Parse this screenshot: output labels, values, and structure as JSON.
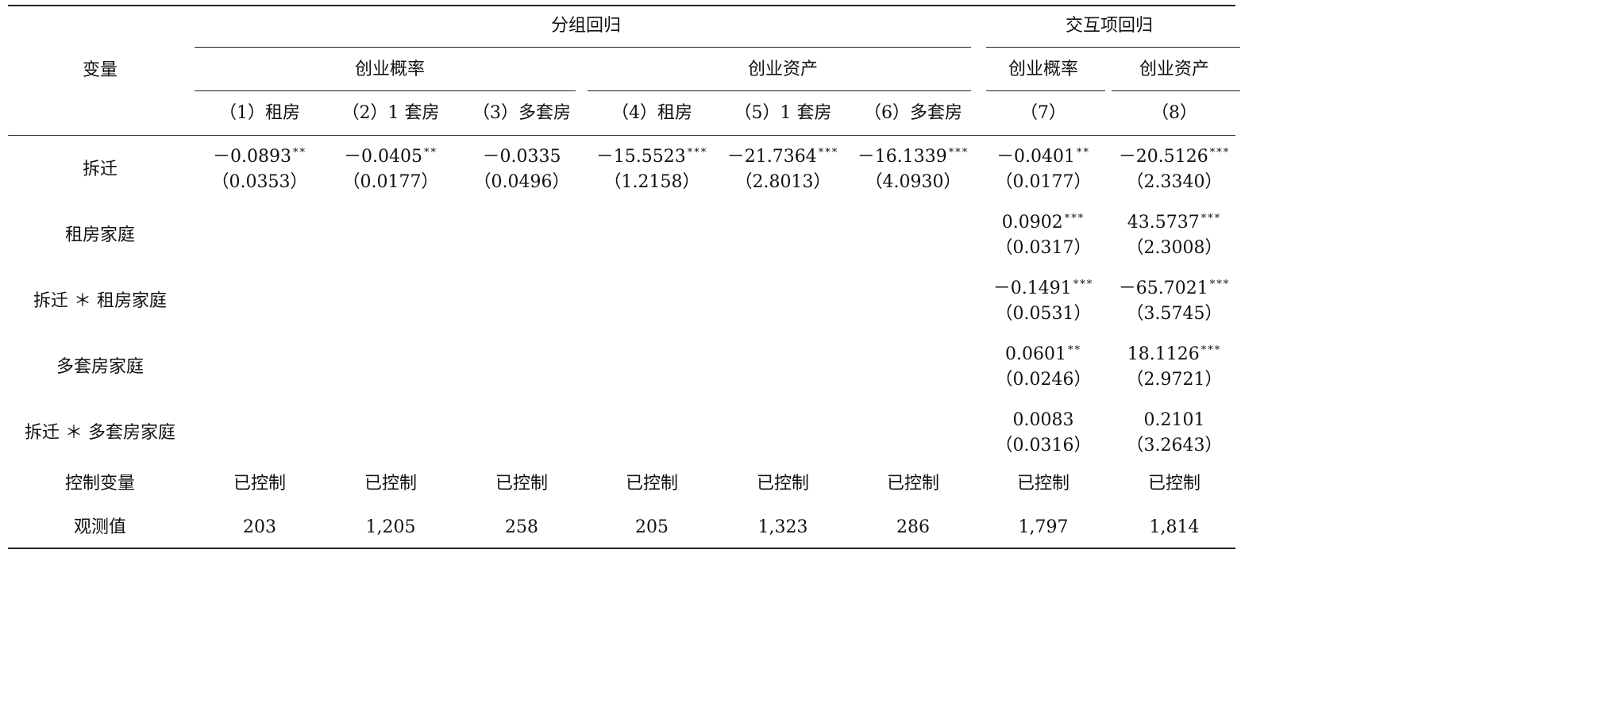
{
  "header": {
    "variable_label": "变量",
    "group_regression": "分组回归",
    "interaction_regression": "交互项回归",
    "group_prob": "创业概率",
    "group_asset": "创业资产",
    "inter_prob": "创业概率",
    "inter_asset": "创业资产",
    "columns": [
      "（1）租房",
      "（2）1 套房",
      "（3）多套房",
      "（4）租房",
      "（5）1 套房",
      "（6）多套房",
      "（7）",
      "（8）"
    ]
  },
  "rows": [
    {
      "label": "拆迁",
      "cells": [
        {
          "col": 0,
          "coef": "－0.0893",
          "sig": "**",
          "se": "（0.0353）"
        },
        {
          "col": 1,
          "coef": "－0.0405",
          "sig": "**",
          "se": "（0.0177）"
        },
        {
          "col": 2,
          "coef": "－0.0335",
          "sig": "",
          "se": "（0.0496）"
        },
        {
          "col": 3,
          "coef": "－15.5523",
          "sig": "***",
          "se": "（1.2158）"
        },
        {
          "col": 4,
          "coef": "－21.7364",
          "sig": "***",
          "se": "（2.8013）"
        },
        {
          "col": 5,
          "coef": "－16.1339",
          "sig": "***",
          "se": "（4.0930）"
        },
        {
          "col": 6,
          "coef": "－0.0401",
          "sig": "**",
          "se": "（0.0177）"
        },
        {
          "col": 7,
          "coef": "－20.5126",
          "sig": "***",
          "se": "（2.3340）"
        }
      ]
    },
    {
      "label": "租房家庭",
      "cells": [
        {
          "col": 6,
          "coef": "0.0902",
          "sig": "***",
          "se": "（0.0317）"
        },
        {
          "col": 7,
          "coef": "43.5737",
          "sig": "***",
          "se": "（2.3008）"
        }
      ]
    },
    {
      "label": "拆迁 ＊ 租房家庭",
      "cells": [
        {
          "col": 6,
          "coef": "－0.1491",
          "sig": "***",
          "se": "（0.0531）"
        },
        {
          "col": 7,
          "coef": "－65.7021",
          "sig": "***",
          "se": "（3.5745）"
        }
      ]
    },
    {
      "label": "多套房家庭",
      "cells": [
        {
          "col": 6,
          "coef": "0.0601",
          "sig": "**",
          "se": "（0.0246）"
        },
        {
          "col": 7,
          "coef": "18.1126",
          "sig": "***",
          "se": "（2.9721）"
        }
      ]
    },
    {
      "label": "拆迁 ＊ 多套房家庭",
      "cells": [
        {
          "col": 6,
          "coef": "0.0083",
          "sig": "",
          "se": "（0.0316）"
        },
        {
          "col": 7,
          "coef": "0.2101",
          "sig": "",
          "se": "（3.2643）"
        }
      ]
    }
  ],
  "controls": {
    "label": "控制变量",
    "values": [
      "已控制",
      "已控制",
      "已控制",
      "已控制",
      "已控制",
      "已控制",
      "已控制",
      "已控制"
    ]
  },
  "observations": {
    "label": "观测值",
    "values": [
      "203",
      "1,205",
      "258",
      "205",
      "1,323",
      "286",
      "1,797",
      "1,814"
    ]
  }
}
